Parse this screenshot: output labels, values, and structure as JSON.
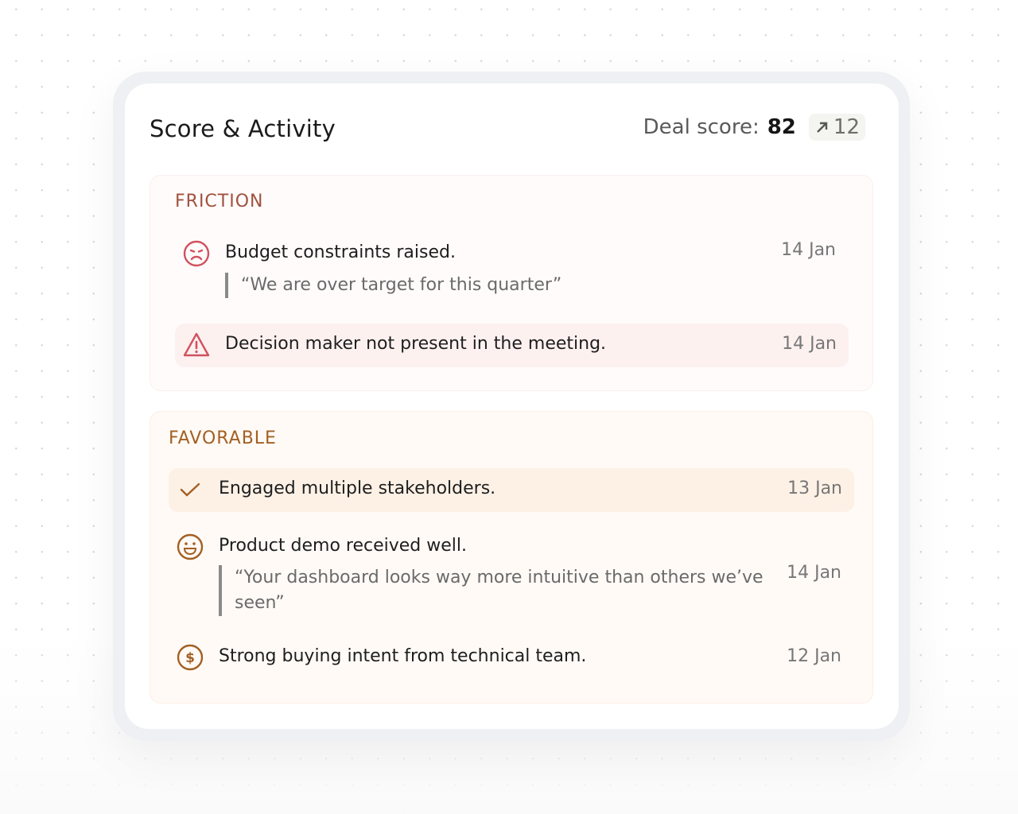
{
  "header": {
    "title": "Score & Activity",
    "deal_score_label": "Deal score:",
    "deal_score": "82",
    "delta": "12",
    "delta_icon": "arrow-up-right-icon"
  },
  "friction": {
    "label": "FRICTION",
    "color": "#a0523d",
    "items": [
      {
        "icon": "sad-face-icon",
        "text": "Budget constraints raised.",
        "quote": "“We are over target for this quarter”",
        "date": "14 Jan"
      },
      {
        "icon": "warning-triangle-icon",
        "text": "Decision maker not present in the meeting.",
        "date": "14 Jan",
        "highlighted": true
      }
    ]
  },
  "favorable": {
    "label": "FAVORABLE",
    "color": "#a35f22",
    "items": [
      {
        "icon": "check-icon",
        "text": "Engaged multiple stakeholders.",
        "date": "13 Jan",
        "highlighted": true
      },
      {
        "icon": "happy-face-icon",
        "text": "Product demo received well.",
        "quote": "“Your dashboard looks way more intuitive than others we’ve seen”",
        "date": "14 Jan"
      },
      {
        "icon": "dollar-circle-icon",
        "text": "Strong buying intent from technical team.",
        "date": "12 Jan"
      }
    ]
  }
}
